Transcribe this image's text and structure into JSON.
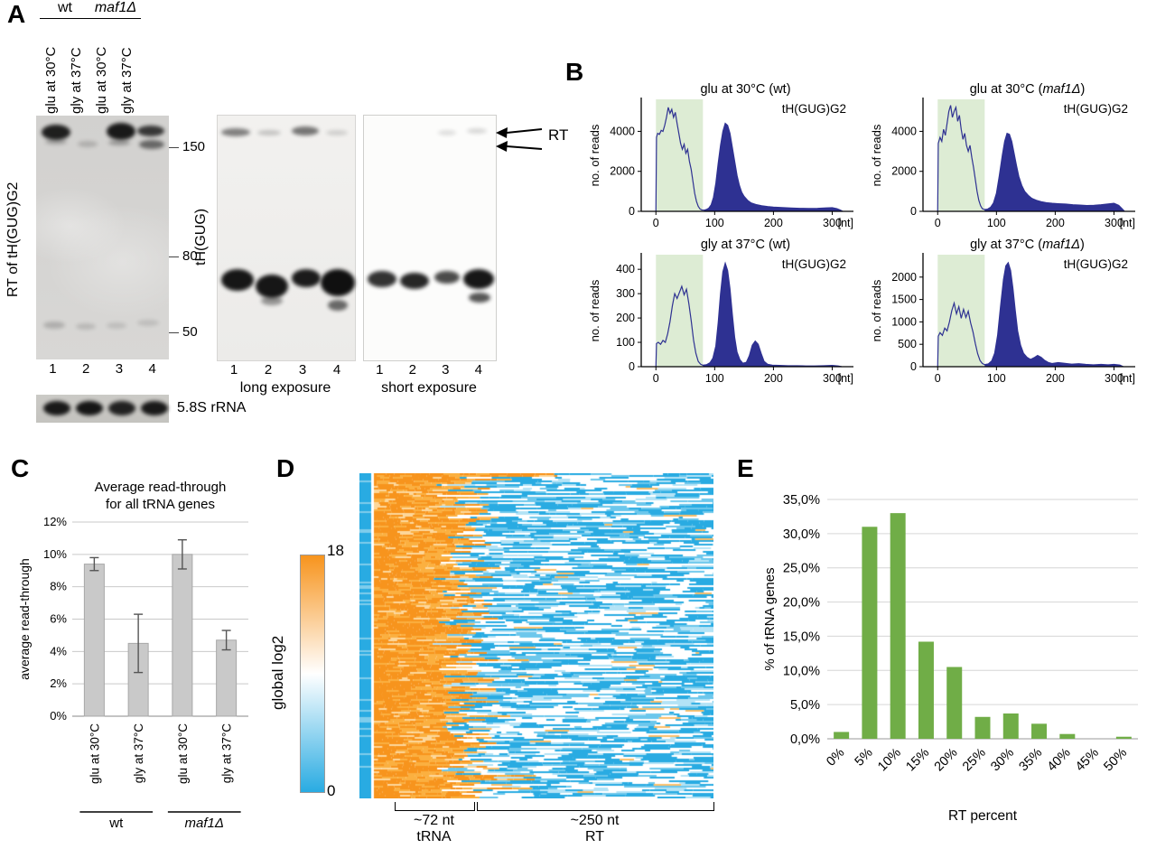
{
  "panelA": {
    "label": "A",
    "group_wt": "wt",
    "group_maf1": "maf1Δ",
    "conditions": [
      "glu at 30°C",
      "gly at 37°C",
      "glu at 30°C",
      "gly at 37°C"
    ],
    "left_blot_ylabel": "RT of tH(GUG)G2",
    "markers": [
      "150",
      "80",
      "50"
    ],
    "lanes": [
      "1",
      "2",
      "3",
      "4"
    ],
    "middle_blot_ylabel": "tH(GUG)",
    "caption_long": "long exposure",
    "caption_short": "short exposure",
    "rt_label": "RT",
    "control_label": "5.8S rRNA"
  },
  "panelB": {
    "label": "B"
  },
  "panelC": {
    "label": "C"
  },
  "panelD": {
    "label": "D"
  },
  "panelE": {
    "label": "E"
  },
  "chart_data": [
    {
      "id": "B-glu30-wt",
      "type": "area",
      "title": "glu at 30°C (wt)",
      "title_italic": "",
      "annotation": "tH(GUG)G2",
      "ylabel": "no. of reads",
      "x_unit": "[nt]",
      "xlim": [
        -25,
        330
      ],
      "ylim": [
        0,
        5600
      ],
      "xticks": [
        0,
        100,
        200,
        300
      ],
      "yticks": [
        0,
        2000,
        4000
      ],
      "shaded": [
        0,
        80
      ],
      "profile": [
        [
          0,
          0
        ],
        [
          1,
          3700
        ],
        [
          3,
          3900
        ],
        [
          6,
          3850
        ],
        [
          9,
          4050
        ],
        [
          12,
          4000
        ],
        [
          15,
          4300
        ],
        [
          18,
          4700
        ],
        [
          21,
          5200
        ],
        [
          24,
          4900
        ],
        [
          27,
          5100
        ],
        [
          30,
          4700
        ],
        [
          33,
          4950
        ],
        [
          36,
          4400
        ],
        [
          39,
          3900
        ],
        [
          42,
          3400
        ],
        [
          45,
          3100
        ],
        [
          48,
          3350
        ],
        [
          51,
          2900
        ],
        [
          54,
          3100
        ],
        [
          57,
          2500
        ],
        [
          60,
          2100
        ],
        [
          63,
          1500
        ],
        [
          66,
          900
        ],
        [
          69,
          500
        ],
        [
          72,
          250
        ],
        [
          75,
          120
        ],
        [
          78,
          70
        ],
        [
          82,
          60
        ],
        [
          86,
          90
        ],
        [
          90,
          160
        ],
        [
          94,
          320
        ],
        [
          98,
          700
        ],
        [
          102,
          1400
        ],
        [
          106,
          2400
        ],
        [
          110,
          3300
        ],
        [
          114,
          4000
        ],
        [
          118,
          4400
        ],
        [
          122,
          4300
        ],
        [
          126,
          3900
        ],
        [
          130,
          3200
        ],
        [
          134,
          2500
        ],
        [
          138,
          1800
        ],
        [
          142,
          1300
        ],
        [
          146,
          950
        ],
        [
          150,
          750
        ],
        [
          156,
          550
        ],
        [
          162,
          420
        ],
        [
          170,
          340
        ],
        [
          180,
          280
        ],
        [
          190,
          240
        ],
        [
          200,
          210
        ],
        [
          215,
          185
        ],
        [
          230,
          165
        ],
        [
          245,
          150
        ],
        [
          260,
          140
        ],
        [
          275,
          150
        ],
        [
          290,
          170
        ],
        [
          300,
          180
        ],
        [
          308,
          130
        ],
        [
          314,
          60
        ],
        [
          318,
          0
        ]
      ]
    },
    {
      "id": "B-glu30-maf1",
      "type": "area",
      "title": "glu at 30°C (maf1Δ)",
      "title_italic": "maf1Δ",
      "annotation": "tH(GUG)G2",
      "ylabel": "no. of reads",
      "x_unit": "[nt]",
      "xlim": [
        -25,
        330
      ],
      "ylim": [
        0,
        5600
      ],
      "xticks": [
        0,
        100,
        200,
        300
      ],
      "yticks": [
        0,
        2000,
        4000
      ],
      "shaded": [
        0,
        80
      ],
      "profile": [
        [
          0,
          0
        ],
        [
          1,
          3400
        ],
        [
          4,
          3700
        ],
        [
          7,
          3500
        ],
        [
          10,
          4100
        ],
        [
          13,
          3800
        ],
        [
          16,
          4400
        ],
        [
          19,
          5000
        ],
        [
          22,
          5300
        ],
        [
          25,
          4700
        ],
        [
          28,
          5000
        ],
        [
          31,
          5200
        ],
        [
          34,
          4500
        ],
        [
          37,
          4800
        ],
        [
          40,
          4100
        ],
        [
          43,
          3600
        ],
        [
          46,
          3900
        ],
        [
          49,
          3300
        ],
        [
          52,
          3000
        ],
        [
          55,
          3300
        ],
        [
          58,
          2700
        ],
        [
          61,
          2200
        ],
        [
          64,
          1600
        ],
        [
          67,
          1000
        ],
        [
          70,
          550
        ],
        [
          73,
          280
        ],
        [
          76,
          130
        ],
        [
          80,
          90
        ],
        [
          85,
          110
        ],
        [
          90,
          200
        ],
        [
          95,
          420
        ],
        [
          100,
          900
        ],
        [
          105,
          1800
        ],
        [
          110,
          2800
        ],
        [
          114,
          3500
        ],
        [
          118,
          3900
        ],
        [
          122,
          3850
        ],
        [
          126,
          3500
        ],
        [
          130,
          2900
        ],
        [
          134,
          2300
        ],
        [
          138,
          1750
        ],
        [
          143,
          1300
        ],
        [
          148,
          1000
        ],
        [
          154,
          800
        ],
        [
          160,
          650
        ],
        [
          168,
          550
        ],
        [
          176,
          480
        ],
        [
          185,
          430
        ],
        [
          195,
          400
        ],
        [
          205,
          380
        ],
        [
          218,
          360
        ],
        [
          230,
          330
        ],
        [
          242,
          310
        ],
        [
          254,
          290
        ],
        [
          266,
          300
        ],
        [
          278,
          330
        ],
        [
          290,
          370
        ],
        [
          300,
          400
        ],
        [
          308,
          300
        ],
        [
          314,
          120
        ],
        [
          318,
          0
        ]
      ]
    },
    {
      "id": "B-gly37-wt",
      "type": "area",
      "title": "gly at 37°C (wt)",
      "title_italic": "",
      "annotation": "tH(GUG)G2",
      "ylabel": "no. of reads",
      "x_unit": "[nt]",
      "xlim": [
        -25,
        330
      ],
      "ylim": [
        0,
        460
      ],
      "xticks": [
        0,
        100,
        200,
        300
      ],
      "yticks": [
        0,
        100,
        200,
        300,
        400
      ],
      "shaded": [
        0,
        80
      ],
      "profile": [
        [
          0,
          0
        ],
        [
          1,
          95
        ],
        [
          4,
          100
        ],
        [
          8,
          92
        ],
        [
          12,
          108
        ],
        [
          16,
          100
        ],
        [
          20,
          135
        ],
        [
          24,
          185
        ],
        [
          28,
          250
        ],
        [
          32,
          300
        ],
        [
          36,
          280
        ],
        [
          40,
          305
        ],
        [
          44,
          330
        ],
        [
          48,
          295
        ],
        [
          52,
          318
        ],
        [
          56,
          260
        ],
        [
          60,
          190
        ],
        [
          64,
          110
        ],
        [
          68,
          55
        ],
        [
          72,
          22
        ],
        [
          76,
          10
        ],
        [
          80,
          6
        ],
        [
          86,
          8
        ],
        [
          92,
          16
        ],
        [
          97,
          35
        ],
        [
          102,
          85
        ],
        [
          106,
          180
        ],
        [
          110,
          300
        ],
        [
          114,
          390
        ],
        [
          118,
          425
        ],
        [
          122,
          395
        ],
        [
          126,
          320
        ],
        [
          130,
          215
        ],
        [
          134,
          120
        ],
        [
          138,
          60
        ],
        [
          143,
          28
        ],
        [
          148,
          14
        ],
        [
          154,
          18
        ],
        [
          159,
          45
        ],
        [
          164,
          88
        ],
        [
          169,
          105
        ],
        [
          174,
          92
        ],
        [
          179,
          55
        ],
        [
          184,
          22
        ],
        [
          190,
          10
        ],
        [
          198,
          6
        ],
        [
          210,
          5
        ],
        [
          225,
          4
        ],
        [
          240,
          4
        ],
        [
          255,
          3
        ],
        [
          270,
          3
        ],
        [
          285,
          4
        ],
        [
          300,
          5
        ],
        [
          310,
          3
        ],
        [
          316,
          0
        ]
      ]
    },
    {
      "id": "B-gly37-maf1",
      "type": "area",
      "title": "gly at 37°C (maf1Δ)",
      "title_italic": "maf1Δ",
      "annotation": "tH(GUG)G2",
      "ylabel": "no. of reads",
      "x_unit": "[nt]",
      "xlim": [
        -25,
        330
      ],
      "ylim": [
        0,
        2500
      ],
      "xticks": [
        0,
        100,
        200,
        300
      ],
      "yticks": [
        0,
        500,
        1000,
        1500,
        2000
      ],
      "shaded": [
        0,
        80
      ],
      "profile": [
        [
          0,
          0
        ],
        [
          1,
          680
        ],
        [
          4,
          760
        ],
        [
          8,
          700
        ],
        [
          12,
          860
        ],
        [
          16,
          800
        ],
        [
          20,
          1000
        ],
        [
          24,
          1250
        ],
        [
          28,
          1420
        ],
        [
          32,
          1180
        ],
        [
          36,
          1340
        ],
        [
          40,
          1080
        ],
        [
          44,
          1280
        ],
        [
          48,
          1100
        ],
        [
          52,
          1240
        ],
        [
          56,
          980
        ],
        [
          60,
          780
        ],
        [
          64,
          520
        ],
        [
          68,
          290
        ],
        [
          72,
          140
        ],
        [
          76,
          70
        ],
        [
          80,
          45
        ],
        [
          86,
          60
        ],
        [
          92,
          130
        ],
        [
          97,
          300
        ],
        [
          102,
          700
        ],
        [
          107,
          1350
        ],
        [
          112,
          1950
        ],
        [
          116,
          2250
        ],
        [
          120,
          2320
        ],
        [
          124,
          2150
        ],
        [
          128,
          1750
        ],
        [
          132,
          1250
        ],
        [
          136,
          800
        ],
        [
          141,
          480
        ],
        [
          146,
          300
        ],
        [
          152,
          210
        ],
        [
          158,
          160
        ],
        [
          164,
          200
        ],
        [
          170,
          250
        ],
        [
          176,
          210
        ],
        [
          182,
          140
        ],
        [
          188,
          95
        ],
        [
          195,
          70
        ],
        [
          205,
          90
        ],
        [
          215,
          75
        ],
        [
          228,
          55
        ],
        [
          240,
          65
        ],
        [
          252,
          50
        ],
        [
          265,
          42
        ],
        [
          278,
          52
        ],
        [
          290,
          42
        ],
        [
          300,
          50
        ],
        [
          310,
          35
        ],
        [
          316,
          0
        ]
      ]
    },
    {
      "id": "C",
      "type": "bar",
      "title_lines": [
        "Average read-through",
        "for all tRNA genes"
      ],
      "ylabel": "average read-through",
      "categories": [
        "glu at 30°C",
        "gly at 37°C",
        "glu at 30°C",
        "gly at 37°C"
      ],
      "group_labels": [
        "wt",
        "maf1Δ"
      ],
      "values": [
        9.4,
        4.5,
        10.0,
        4.7
      ],
      "errors": [
        0.4,
        1.8,
        0.9,
        0.6
      ],
      "ylim": [
        0,
        12
      ],
      "ytick_step": 2,
      "ytick_suffix": "%",
      "bar_color": "#c9c9c9"
    },
    {
      "id": "D",
      "type": "heatmap",
      "colorbar": {
        "label": "global log2",
        "max": 18,
        "min": 0,
        "top_color": "#f7941d",
        "mid_color": "#ffffff",
        "bottom_color": "#29abe2"
      },
      "regions": [
        {
          "lines": [
            "~72 nt",
            "tRNA"
          ]
        },
        {
          "lines": [
            "~250 nt",
            "RT"
          ]
        }
      ],
      "rows": 180,
      "seed": 1337
    },
    {
      "id": "E",
      "type": "bar",
      "xlabel": "RT percent",
      "ylabel": "% of tRNA genes",
      "categories": [
        "0%",
        "5%",
        "10%",
        "15%",
        "20%",
        "25%",
        "30%",
        "35%",
        "40%",
        "45%",
        "50%"
      ],
      "values": [
        1.0,
        31.0,
        33.0,
        14.2,
        10.5,
        3.2,
        3.7,
        2.2,
        0.7,
        0,
        0.3
      ],
      "ylim": [
        0,
        35
      ],
      "ytick_step": 5,
      "ytick_labels": [
        "0,0%",
        "5,0%",
        "10,0%",
        "15,0%",
        "20,0%",
        "25,0%",
        "30,0%",
        "35,0%"
      ],
      "bar_color": "#70ad47"
    }
  ]
}
